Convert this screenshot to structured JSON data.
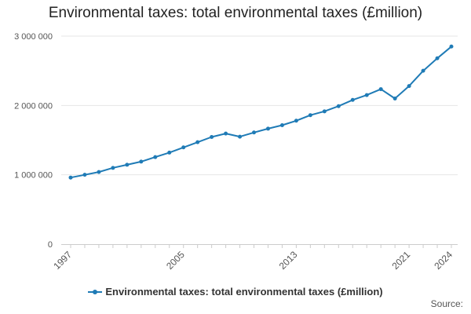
{
  "chart_data": {
    "type": "line",
    "title": "Environmental taxes: total environmental taxes (£million)",
    "x": [
      1997,
      1998,
      1999,
      2000,
      2001,
      2002,
      2003,
      2004,
      2005,
      2006,
      2007,
      2008,
      2009,
      2010,
      2011,
      2012,
      2013,
      2014,
      2015,
      2016,
      2017,
      2018,
      2019,
      2020,
      2021,
      2022,
      2023,
      2024
    ],
    "series": [
      {
        "name": "Environmental taxes: total environmental taxes (£million)",
        "color": "#1f7bb6",
        "values": [
          960000,
          1000000,
          1040000,
          1100000,
          1145000,
          1190000,
          1255000,
          1320000,
          1395000,
          1470000,
          1545000,
          1595000,
          1550000,
          1610000,
          1665000,
          1715000,
          1780000,
          1860000,
          1915000,
          1990000,
          2080000,
          2150000,
          2235000,
          2100000,
          2280000,
          2500000,
          2680000,
          2850000
        ]
      }
    ],
    "ylim": [
      0,
      3000000
    ],
    "y_ticks": [
      0,
      1000000,
      2000000,
      3000000
    ],
    "y_tick_labels": [
      "0",
      "1 000 000",
      "2 000 000",
      "3 000 000"
    ],
    "x_tick_labels": [
      "1997",
      "2005",
      "2013",
      "2021",
      "2024"
    ],
    "xlabel": "",
    "ylabel": "",
    "grid": true,
    "legend_position": "bottom"
  },
  "source_label": "Source:"
}
